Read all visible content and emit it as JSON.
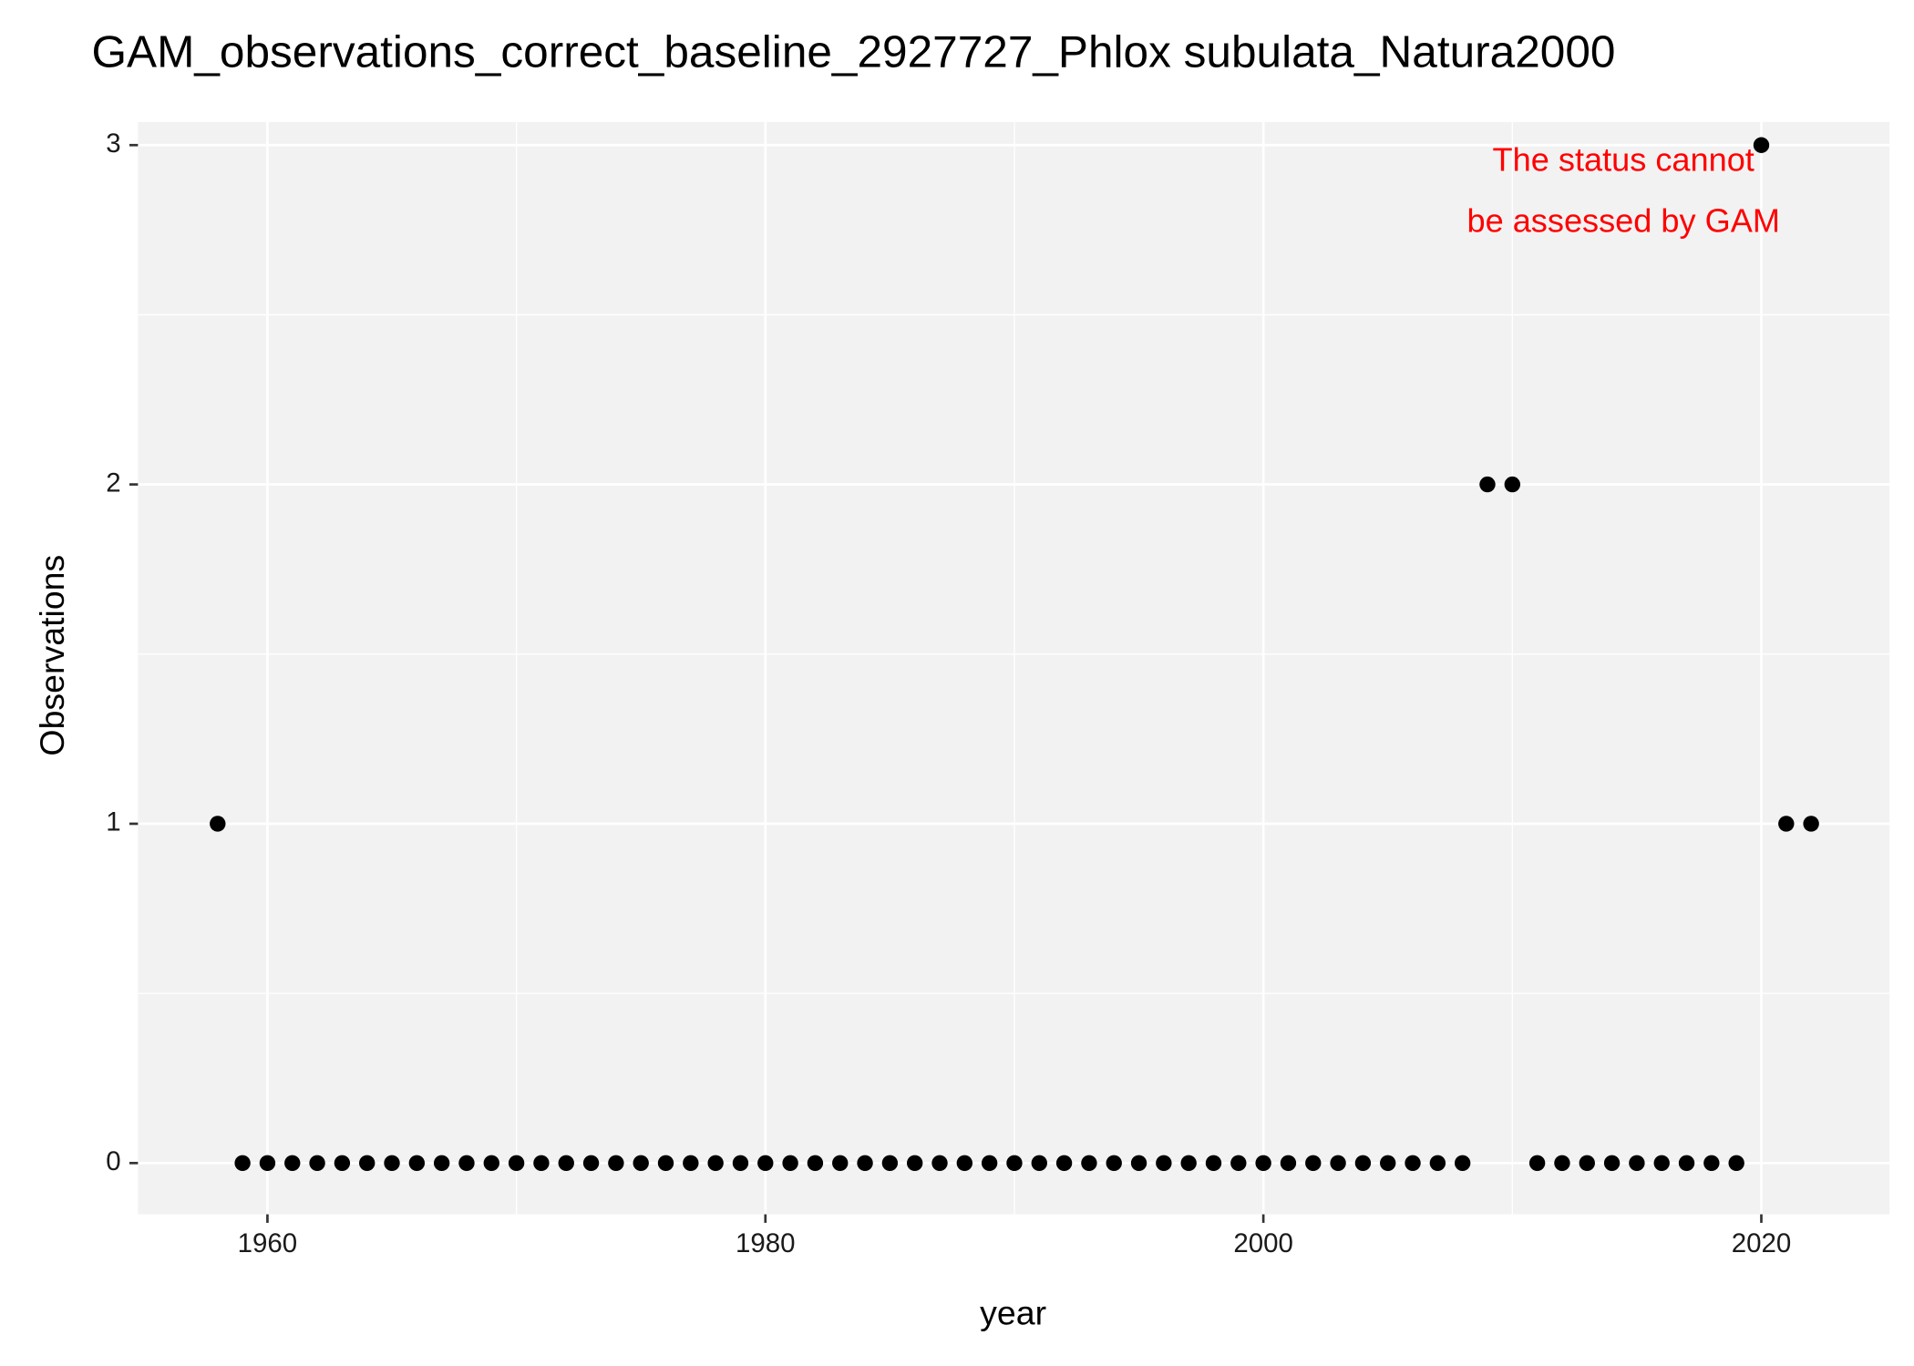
{
  "chart_data": {
    "type": "scatter",
    "title": "GAM_observations_correct_baseline_2927727_Phlox subulata_Natura2000",
    "xlabel": "year",
    "ylabel": "Observations",
    "annotation": [
      "The status cannot",
      "be assessed by GAM"
    ],
    "annotation_color": "#ff0000",
    "x": [
      1958,
      1959,
      1960,
      1961,
      1962,
      1963,
      1964,
      1965,
      1966,
      1967,
      1968,
      1969,
      1970,
      1971,
      1972,
      1973,
      1974,
      1975,
      1976,
      1977,
      1978,
      1979,
      1980,
      1981,
      1982,
      1983,
      1984,
      1985,
      1986,
      1987,
      1988,
      1989,
      1990,
      1991,
      1992,
      1993,
      1994,
      1995,
      1996,
      1997,
      1998,
      1999,
      2000,
      2001,
      2002,
      2003,
      2004,
      2005,
      2006,
      2007,
      2008,
      2009,
      2010,
      2011,
      2012,
      2013,
      2014,
      2015,
      2016,
      2017,
      2018,
      2019,
      2020,
      2021,
      2022
    ],
    "values": [
      1,
      0,
      0,
      0,
      0,
      0,
      0,
      0,
      0,
      0,
      0,
      0,
      0,
      0,
      0,
      0,
      0,
      0,
      0,
      0,
      0,
      0,
      0,
      0,
      0,
      0,
      0,
      0,
      0,
      0,
      0,
      0,
      0,
      0,
      0,
      0,
      0,
      0,
      0,
      0,
      0,
      0,
      0,
      0,
      0,
      0,
      0,
      0,
      0,
      0,
      0,
      2,
      2,
      0,
      0,
      0,
      0,
      0,
      0,
      0,
      0,
      0,
      3,
      1,
      1
    ],
    "color": "#000000",
    "xlim": [
      1954.8,
      2025.15
    ],
    "xticks": [
      1960,
      1980,
      2000,
      2020
    ],
    "xminor": [
      1970,
      1990,
      2010
    ],
    "ylim": [
      -0.151,
      3.068
    ],
    "yticks": [
      0,
      1,
      2,
      3
    ],
    "yminor": [
      0.5,
      1.5,
      2.5
    ],
    "grid": true
  }
}
